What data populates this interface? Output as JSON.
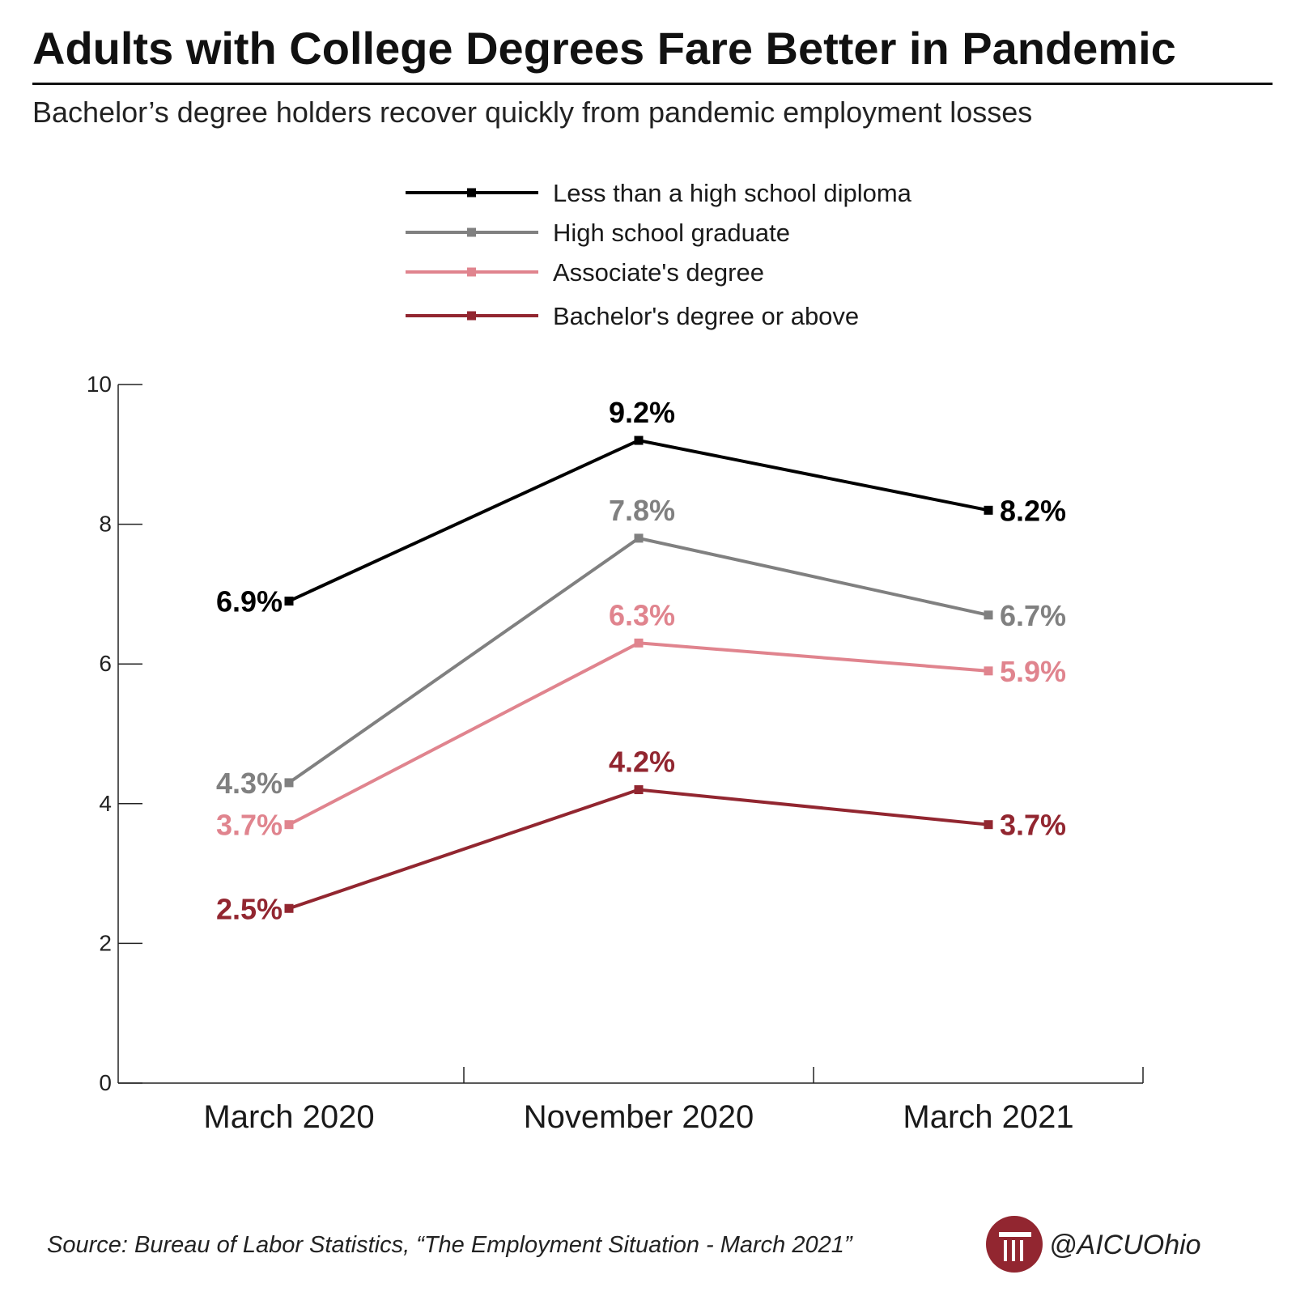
{
  "chart_data": {
    "type": "line",
    "title": "Adults with College Degrees Fare Better in Pandemic",
    "subtitle": "Bachelor’s degree holders recover quickly from pandemic employment losses",
    "categories": [
      "March 2020",
      "November 2020",
      "March 2021"
    ],
    "ylim": [
      0,
      10
    ],
    "yticks": [
      "0",
      "2",
      "4",
      "6",
      "8",
      "10"
    ],
    "grid": false,
    "legend_position": "top-center",
    "series": [
      {
        "name": "Less than a high school diploma",
        "color": "#000000",
        "values": [
          6.9,
          9.2,
          8.2
        ],
        "labels": [
          "6.9%",
          "9.2%",
          "8.2%"
        ]
      },
      {
        "name": "High school graduate",
        "color": "#808080",
        "values": [
          4.3,
          7.8,
          6.7
        ],
        "labels": [
          "4.3%",
          "7.8%",
          "6.7%"
        ]
      },
      {
        "name": "Associate's degree",
        "color": "#e0848e",
        "values": [
          3.7,
          6.3,
          5.9
        ],
        "labels": [
          "3.7%",
          "6.3%",
          "5.9%"
        ]
      },
      {
        "name": "Bachelor's degree or above",
        "color": "#922630",
        "values": [
          2.5,
          4.2,
          3.7
        ],
        "labels": [
          "2.5%",
          "4.2%",
          "3.7%"
        ]
      }
    ]
  },
  "footer": {
    "source": "Source: Bureau of Labor Statistics, “The Employment Situation - March 2021”",
    "handle": "@AICUOhio",
    "logo_icon": "aicu-column-logo",
    "logo_color": "#922630"
  }
}
